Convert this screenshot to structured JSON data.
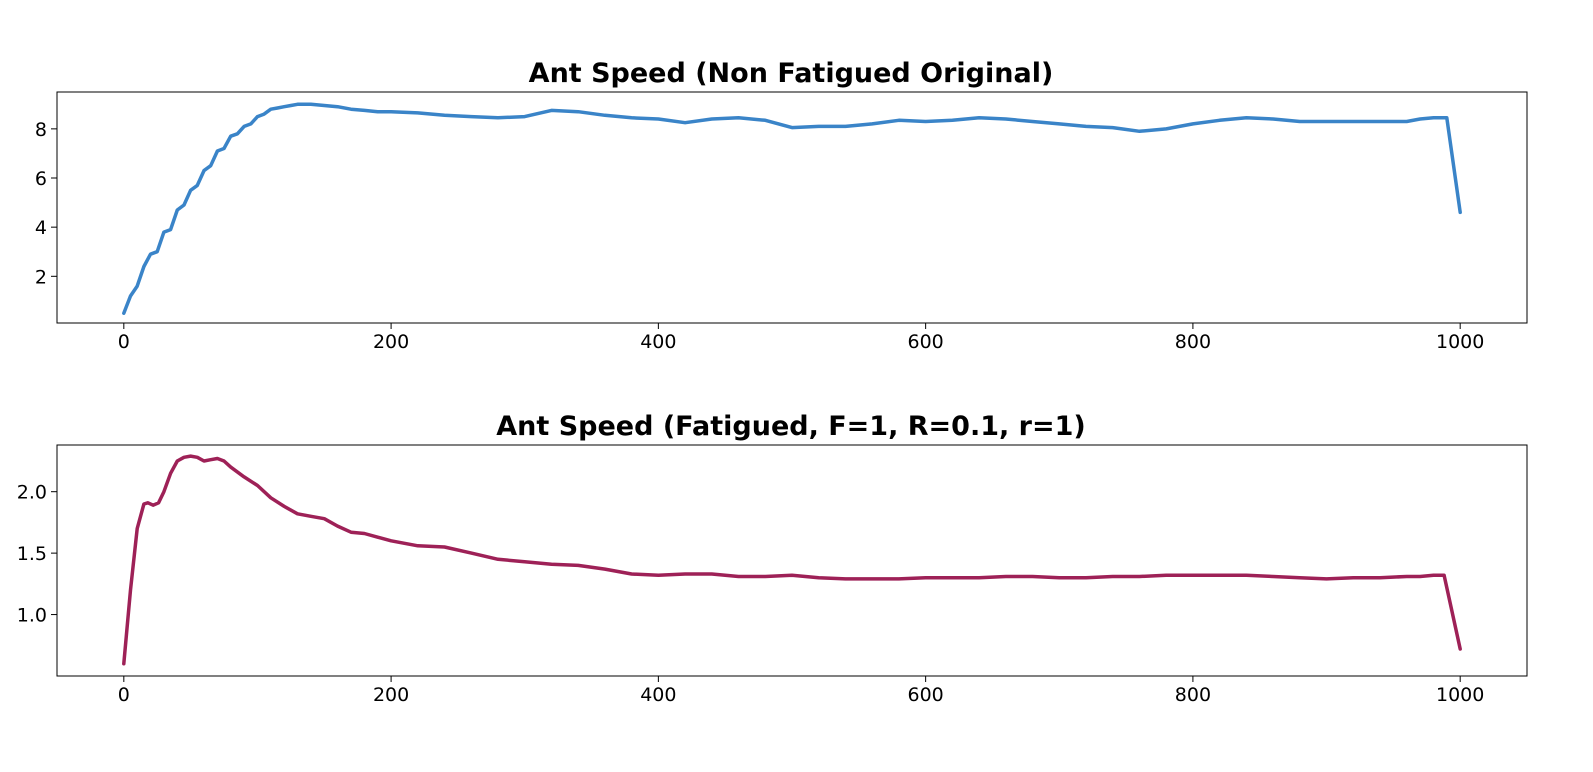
{
  "chart_data": [
    {
      "type": "line",
      "title": "Ant Speed (Non Fatigued Original)",
      "xlabel": "",
      "ylabel": "",
      "xlim": [
        -50,
        1050
      ],
      "ylim": [
        0.1,
        9.5
      ],
      "xticks": [
        0,
        200,
        400,
        600,
        800,
        1000
      ],
      "xtick_labels": [
        "0",
        "200",
        "400",
        "600",
        "800",
        "1000"
      ],
      "yticks": [
        2,
        4,
        6,
        8
      ],
      "ytick_labels": [
        "2",
        "4",
        "6",
        "8"
      ],
      "grid": false,
      "color": "#3a84c8",
      "series": [
        {
          "x": [
            0,
            5,
            10,
            15,
            20,
            25,
            30,
            35,
            40,
            45,
            50,
            55,
            60,
            65,
            70,
            75,
            80,
            85,
            90,
            95,
            100,
            105,
            110,
            115,
            120,
            125,
            130,
            135,
            140,
            150,
            160,
            170,
            180,
            190,
            200,
            220,
            240,
            260,
            280,
            300,
            320,
            340,
            360,
            380,
            400,
            420,
            440,
            460,
            480,
            500,
            520,
            540,
            560,
            580,
            600,
            620,
            640,
            660,
            680,
            700,
            720,
            740,
            760,
            780,
            800,
            820,
            840,
            860,
            880,
            900,
            920,
            940,
            960,
            970,
            980,
            990,
            1000
          ],
          "y": [
            0.5,
            1.2,
            1.6,
            2.4,
            2.9,
            3.0,
            3.8,
            3.9,
            4.7,
            4.9,
            5.5,
            5.7,
            6.3,
            6.5,
            7.1,
            7.2,
            7.7,
            7.8,
            8.1,
            8.2,
            8.5,
            8.6,
            8.8,
            8.85,
            8.9,
            8.95,
            9.0,
            9.0,
            9.0,
            8.95,
            8.9,
            8.8,
            8.75,
            8.7,
            8.7,
            8.65,
            8.55,
            8.5,
            8.45,
            8.5,
            8.75,
            8.7,
            8.55,
            8.45,
            8.4,
            8.25,
            8.4,
            8.45,
            8.35,
            8.05,
            8.1,
            8.1,
            8.2,
            8.35,
            8.3,
            8.35,
            8.45,
            8.4,
            8.3,
            8.2,
            8.1,
            8.05,
            7.9,
            8.0,
            8.2,
            8.35,
            8.45,
            8.4,
            8.3,
            8.3,
            8.3,
            8.3,
            8.3,
            8.4,
            8.45,
            8.45,
            4.6
          ]
        }
      ]
    },
    {
      "type": "line",
      "title": "Ant Speed (Fatigued, F=1, R=0.1, r=1)",
      "xlabel": "",
      "ylabel": "",
      "xlim": [
        -50,
        1050
      ],
      "ylim": [
        0.5,
        2.38
      ],
      "xticks": [
        0,
        200,
        400,
        600,
        800,
        1000
      ],
      "xtick_labels": [
        "0",
        "200",
        "400",
        "600",
        "800",
        "1000"
      ],
      "yticks": [
        1.0,
        1.5,
        2.0
      ],
      "ytick_labels": [
        "1.0",
        "1.5",
        "2.0"
      ],
      "grid": false,
      "color": "#9e2157",
      "series": [
        {
          "x": [
            0,
            5,
            10,
            15,
            18,
            22,
            26,
            30,
            35,
            40,
            45,
            50,
            55,
            60,
            65,
            70,
            75,
            80,
            90,
            100,
            110,
            120,
            130,
            140,
            150,
            160,
            170,
            180,
            190,
            200,
            220,
            240,
            260,
            280,
            300,
            320,
            340,
            360,
            380,
            400,
            420,
            440,
            460,
            480,
            500,
            520,
            540,
            560,
            580,
            600,
            620,
            640,
            660,
            680,
            700,
            720,
            740,
            760,
            780,
            800,
            820,
            840,
            860,
            880,
            900,
            920,
            940,
            960,
            970,
            980,
            988,
            1000
          ],
          "y": [
            0.6,
            1.2,
            1.7,
            1.9,
            1.91,
            1.89,
            1.91,
            2.0,
            2.15,
            2.25,
            2.28,
            2.29,
            2.28,
            2.25,
            2.26,
            2.27,
            2.25,
            2.2,
            2.12,
            2.05,
            1.95,
            1.88,
            1.82,
            1.8,
            1.78,
            1.72,
            1.67,
            1.66,
            1.63,
            1.6,
            1.56,
            1.55,
            1.5,
            1.45,
            1.43,
            1.41,
            1.4,
            1.37,
            1.33,
            1.32,
            1.33,
            1.33,
            1.31,
            1.31,
            1.32,
            1.3,
            1.29,
            1.29,
            1.29,
            1.3,
            1.3,
            1.3,
            1.31,
            1.31,
            1.3,
            1.3,
            1.31,
            1.31,
            1.32,
            1.32,
            1.32,
            1.32,
            1.31,
            1.3,
            1.29,
            1.3,
            1.3,
            1.31,
            1.31,
            1.32,
            1.32,
            0.72
          ]
        }
      ]
    }
  ]
}
